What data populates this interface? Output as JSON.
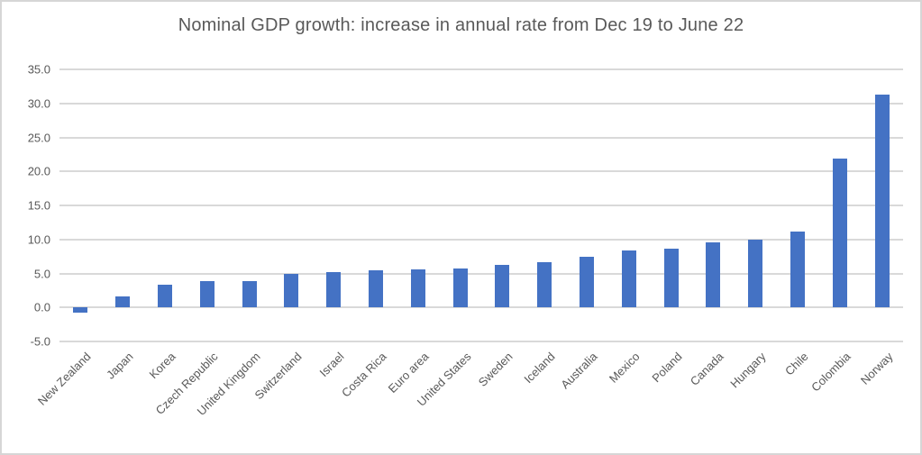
{
  "chart_data": {
    "type": "bar",
    "title": "Nominal GDP growth: increase in annual rate from Dec 19 to June 22",
    "categories": [
      "New Zealand",
      "Japan",
      "Korea",
      "Czech Republic",
      "United Kingdom",
      "Switzerland",
      "Israel",
      "Costa Rica",
      "Euro area",
      "United States",
      "Sweden",
      "Iceland",
      "Australia",
      "Mexico",
      "Poland",
      "Canada",
      "Hungary",
      "Chile",
      "Colombia",
      "Norway"
    ],
    "values": [
      -0.7,
      1.6,
      3.3,
      3.9,
      3.9,
      4.9,
      5.2,
      5.5,
      5.6,
      5.7,
      6.2,
      6.6,
      7.4,
      8.4,
      8.7,
      9.6,
      10.0,
      11.2,
      21.9,
      31.3
    ],
    "xlabel": "",
    "ylabel": "",
    "ylim": [
      -5,
      35
    ],
    "y_tick_values": [
      35,
      30,
      25,
      20,
      15,
      10,
      5,
      0,
      -5
    ],
    "y_tick_labels": [
      "35.0",
      "30.0",
      "25.0",
      "20.0",
      "15.0",
      "10.0",
      "5.0",
      "0.0",
      "-5.0"
    ],
    "grid": true,
    "legend": false,
    "bar_color": "#4472C4",
    "gridline_color": "#D9D9D9",
    "label_color": "#595959",
    "title_color": "#595959",
    "border_color": "#D6D6D6",
    "background_color": "#FFFFFF"
  }
}
